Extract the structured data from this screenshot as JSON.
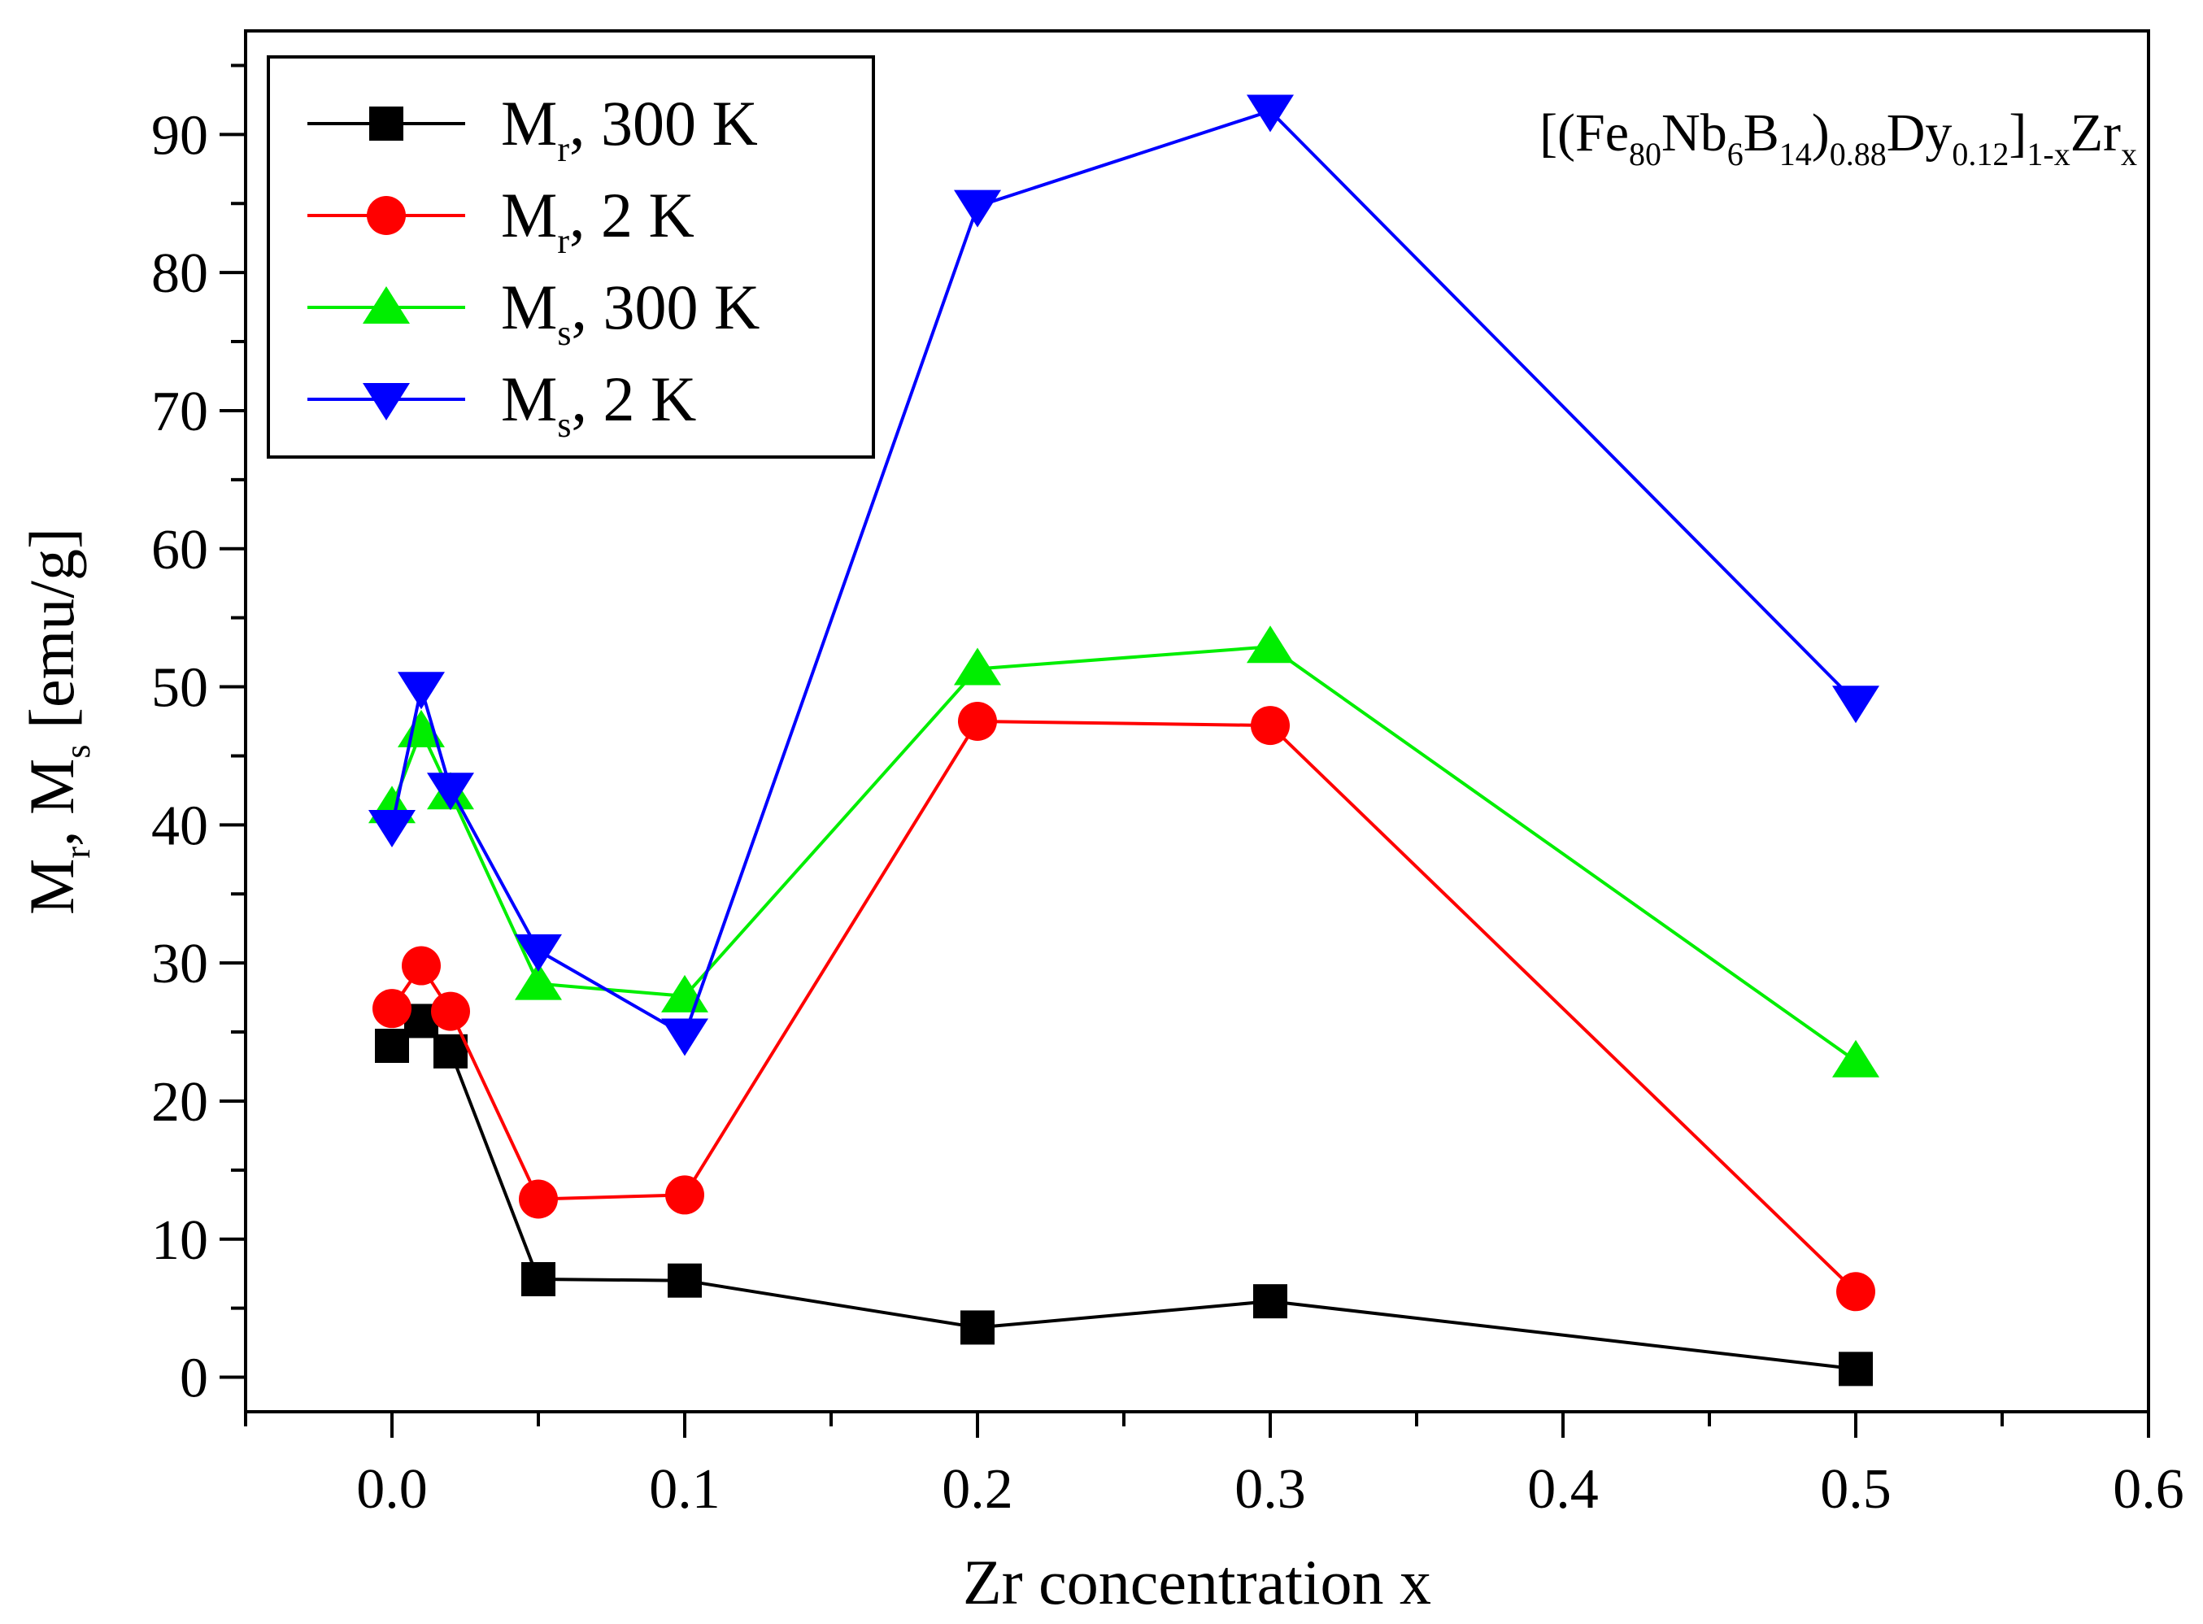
{
  "chart_data": {
    "type": "line",
    "title": "",
    "xlabel": "Zr  concentration  x",
    "ylabel": {
      "parts": [
        {
          "text": "M",
          "sub": "r"
        },
        {
          "text": ",  M",
          "sub": "s"
        },
        {
          "text": "  [emu/g]",
          "sub": ""
        }
      ]
    },
    "formula": {
      "parts": [
        {
          "text": "[(Fe",
          "sub": "80"
        },
        {
          "text": "Nb",
          "sub": "6"
        },
        {
          "text": "B",
          "sub": "14"
        },
        {
          "text": ")",
          "sub": "0.88"
        },
        {
          "text": "Dy",
          "sub": "0.12"
        },
        {
          "text": "]",
          "sub": "1-x"
        },
        {
          "text": "Zr",
          "sub": "x"
        }
      ]
    },
    "xlim": [
      -0.05,
      0.6
    ],
    "ylim": [
      -2.5,
      97.5
    ],
    "xticks": [
      0.0,
      0.1,
      0.2,
      0.3,
      0.4,
      0.5,
      0.6
    ],
    "xtick_labels": [
      "0.0",
      "0.1",
      "0.2",
      "0.3",
      "0.4",
      "0.5",
      "0.6"
    ],
    "xminor_ticks": [
      -0.05,
      0.05,
      0.15,
      0.25,
      0.35,
      0.45,
      0.55
    ],
    "yticks": [
      0,
      10,
      20,
      30,
      40,
      50,
      60,
      70,
      80,
      90
    ],
    "ytick_labels": [
      "0",
      "10",
      "20",
      "30",
      "40",
      "50",
      "60",
      "70",
      "80",
      "90"
    ],
    "yminor_ticks": [
      5,
      15,
      25,
      35,
      45,
      55,
      65,
      75,
      85,
      95
    ],
    "grid": false,
    "legend_position": "top-left",
    "series": [
      {
        "name": "Mr, 300 K",
        "symbol": "M",
        "sub": "r",
        "label_rest": ",  300  K",
        "color": "#000000",
        "marker": "square",
        "x": [
          0.0,
          0.01,
          0.02,
          0.05,
          0.1,
          0.2,
          0.3,
          0.5
        ],
        "values": [
          24.0,
          25.8,
          23.6,
          7.1,
          7.0,
          3.6,
          5.5,
          0.6
        ]
      },
      {
        "name": "Mr, 2 K",
        "symbol": "M",
        "sub": "r",
        "label_rest": ",  2  K",
        "color": "#ff0000",
        "marker": "circle",
        "x": [
          0.0,
          0.01,
          0.02,
          0.05,
          0.1,
          0.2,
          0.3,
          0.5
        ],
        "values": [
          26.7,
          29.8,
          26.5,
          12.9,
          13.2,
          47.5,
          47.2,
          6.2
        ]
      },
      {
        "name": "Ms, 300 K",
        "symbol": "M",
        "sub": "s",
        "label_rest": ",  300  K",
        "color": "#00ee00",
        "marker": "triangle-up",
        "x": [
          0.0,
          0.01,
          0.02,
          0.05,
          0.1,
          0.2,
          0.3,
          0.5
        ],
        "values": [
          41.3,
          46.8,
          42.3,
          28.5,
          27.6,
          51.3,
          52.9,
          22.9
        ]
      },
      {
        "name": "Ms, 2 K",
        "symbol": "M",
        "sub": "s",
        "label_rest": ",  2  K",
        "color": "#0000ff",
        "marker": "triangle-down",
        "x": [
          0.0,
          0.01,
          0.02,
          0.05,
          0.1,
          0.2,
          0.3,
          0.5
        ],
        "values": [
          39.9,
          49.9,
          42.6,
          30.9,
          24.8,
          84.8,
          91.7,
          48.9
        ]
      }
    ]
  }
}
